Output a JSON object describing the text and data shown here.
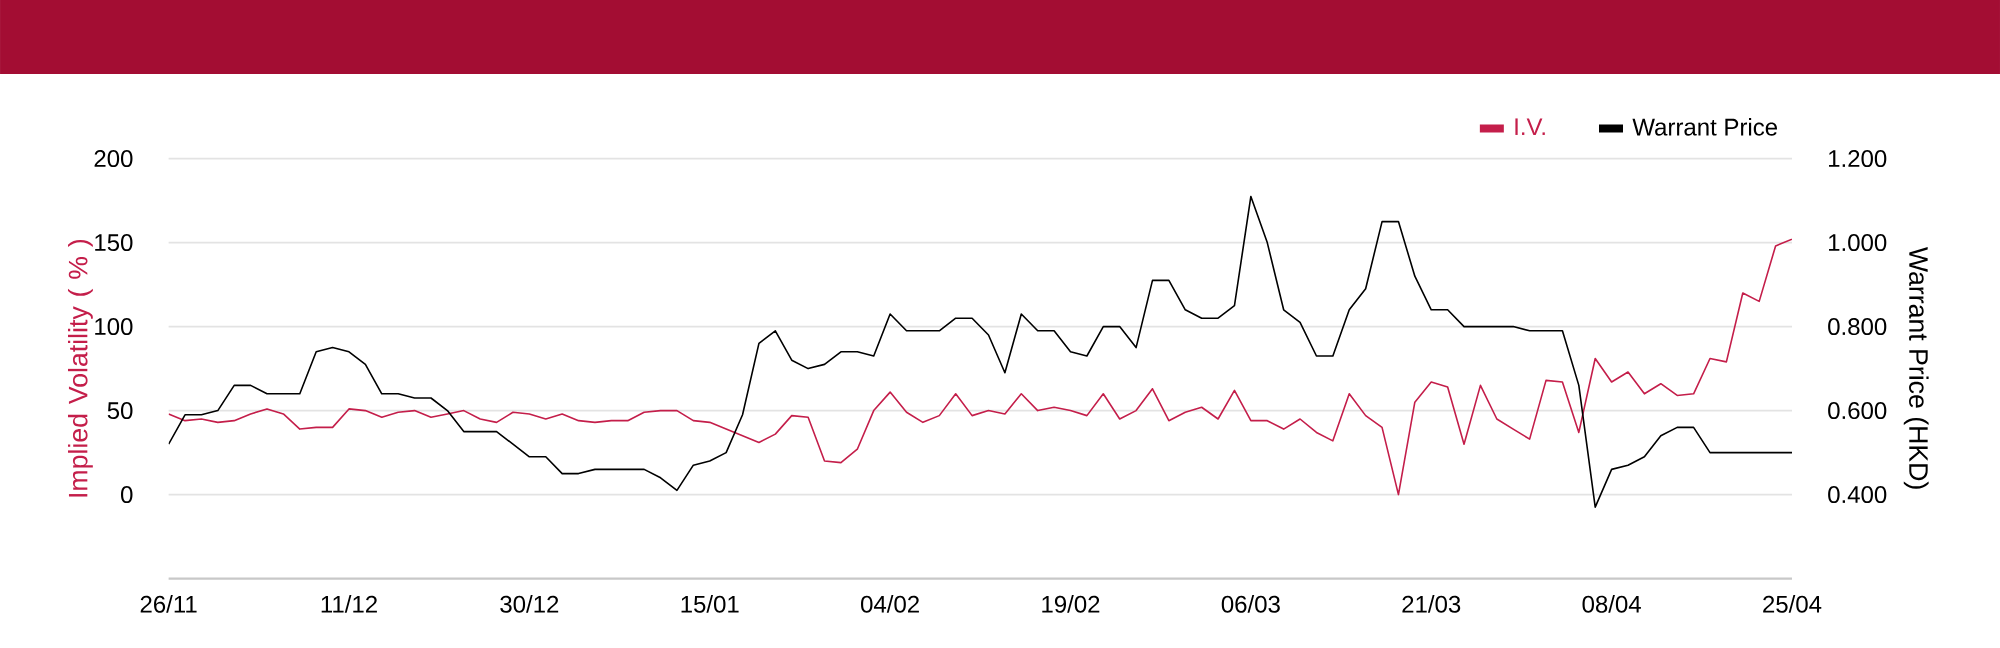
{
  "chart_data": {
    "type": "line",
    "ylabel": "Implied Volatility ( % )",
    "y2label": "Warrant Price (HKD)",
    "categories": [
      "26/11",
      null,
      null,
      null,
      null,
      null,
      null,
      null,
      null,
      null,
      null,
      "11/12",
      null,
      null,
      null,
      null,
      null,
      null,
      null,
      null,
      null,
      null,
      "30/12",
      null,
      null,
      null,
      null,
      null,
      null,
      null,
      null,
      null,
      null,
      "15/01",
      null,
      null,
      null,
      null,
      null,
      null,
      null,
      null,
      null,
      null,
      "04/02",
      null,
      null,
      null,
      null,
      null,
      null,
      null,
      null,
      null,
      null,
      "19/02",
      null,
      null,
      null,
      null,
      null,
      null,
      null,
      null,
      null,
      null,
      "06/03",
      null,
      null,
      null,
      null,
      null,
      null,
      null,
      null,
      null,
      null,
      "21/03",
      null,
      null,
      null,
      null,
      null,
      null,
      null,
      null,
      null,
      null,
      "08/04",
      null,
      null,
      null,
      null,
      null,
      null,
      null,
      null,
      null,
      null,
      "25/04"
    ],
    "series": [
      {
        "name": "I.V.",
        "color": "#c41e4a",
        "values": [
          48,
          44,
          45,
          43,
          44,
          48,
          51,
          48,
          39,
          40,
          40,
          51,
          50,
          46,
          49,
          50,
          46,
          48,
          50,
          45,
          43,
          49,
          48,
          45,
          48,
          44,
          43,
          44,
          44,
          49,
          50,
          50,
          44,
          43,
          39,
          35,
          31,
          36,
          47,
          46,
          20,
          19,
          27,
          50,
          61,
          49,
          43,
          47,
          60,
          47,
          50,
          48,
          60,
          50,
          52,
          50,
          47,
          60,
          45,
          50,
          63,
          44,
          49,
          52,
          45,
          62,
          44,
          44,
          39,
          45,
          37,
          32,
          60,
          47,
          40,
          0,
          55,
          67,
          64,
          30,
          65,
          45,
          39,
          33,
          68,
          67,
          37,
          81,
          67,
          73,
          60,
          66,
          59,
          60,
          81,
          79,
          120,
          115,
          148,
          152
        ]
      },
      {
        "name": "Warrant Price",
        "color": "#000000",
        "axis": "y2",
        "values": [
          0.52,
          0.59,
          0.59,
          0.6,
          0.66,
          0.66,
          0.64,
          0.64,
          0.64,
          0.74,
          0.75,
          0.74,
          0.71,
          0.64,
          0.64,
          0.63,
          0.63,
          0.6,
          0.55,
          0.55,
          0.55,
          0.52,
          0.49,
          0.49,
          0.45,
          0.45,
          0.46,
          0.46,
          0.46,
          0.46,
          0.44,
          0.41,
          0.47,
          0.48,
          0.5,
          0.59,
          0.76,
          0.79,
          0.72,
          0.7,
          0.71,
          0.74,
          0.74,
          0.73,
          0.83,
          0.79,
          0.79,
          0.79,
          0.82,
          0.82,
          0.78,
          0.69,
          0.83,
          0.79,
          0.79,
          0.74,
          0.73,
          0.8,
          0.8,
          0.75,
          0.91,
          0.91,
          0.84,
          0.82,
          0.82,
          0.85,
          1.11,
          1.0,
          0.84,
          0.81,
          0.73,
          0.73,
          0.84,
          0.89,
          1.05,
          1.05,
          0.92,
          0.84,
          0.84,
          0.8,
          0.8,
          0.8,
          0.8,
          0.79,
          0.79,
          0.79,
          0.66,
          0.37,
          0.46,
          0.47,
          0.49,
          0.54,
          0.56,
          0.56,
          0.5,
          0.5,
          0.5,
          0.5,
          0.5,
          0.5
        ]
      }
    ],
    "ylim": [
      -50,
      200
    ],
    "yticks": [
      0,
      50,
      100,
      150,
      200
    ],
    "y2lim": [
      0.2,
      1.2
    ],
    "y2ticks": [
      {
        "value": 0.4,
        "label": "0.400"
      },
      {
        "value": 0.6,
        "label": "0.600"
      },
      {
        "value": 0.8,
        "label": "0.800"
      },
      {
        "value": 1.0,
        "label": "1.000"
      },
      {
        "value": 1.2,
        "label": "1.200"
      }
    ],
    "grid": "y",
    "legend": "top right"
  }
}
